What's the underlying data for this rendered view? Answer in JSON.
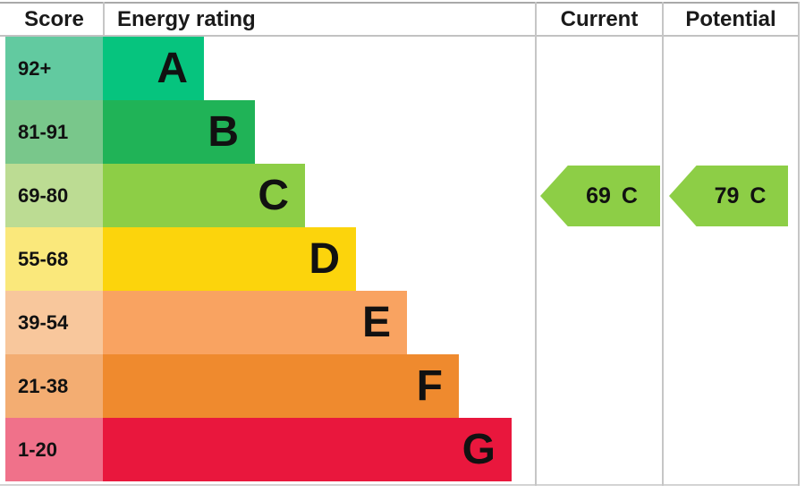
{
  "header": {
    "score": "Score",
    "energy_rating": "Energy rating",
    "current": "Current",
    "potential": "Potential"
  },
  "bands": [
    {
      "score_range": "92+",
      "letter": "A",
      "bar_color": "#06c47e",
      "score_color": "#62caa0"
    },
    {
      "score_range": "81-91",
      "letter": "B",
      "bar_color": "#20b357",
      "score_color": "#79c78b"
    },
    {
      "score_range": "69-80",
      "letter": "C",
      "bar_color": "#8dce46",
      "score_color": "#bcdc93"
    },
    {
      "score_range": "55-68",
      "letter": "D",
      "bar_color": "#fcd40c",
      "score_color": "#fae87b"
    },
    {
      "score_range": "39-54",
      "letter": "E",
      "bar_color": "#f9a361",
      "score_color": "#f8c79c"
    },
    {
      "score_range": "21-38",
      "letter": "F",
      "bar_color": "#ef8a2e",
      "score_color": "#f3ad72"
    },
    {
      "score_range": "1-20",
      "letter": "G",
      "bar_color": "#e9173d",
      "score_color": "#f0718a"
    }
  ],
  "current": {
    "value": "69",
    "band": "C",
    "arrow_color": "#8dce46"
  },
  "potential": {
    "value": "79",
    "band": "C",
    "arrow_color": "#8dce46"
  },
  "chart_data": {
    "type": "bar",
    "title": "Energy rating (EPC)",
    "categories": [
      "A",
      "B",
      "C",
      "D",
      "E",
      "F",
      "G"
    ],
    "score_ranges": [
      "92+",
      "81-91",
      "69-80",
      "55-68",
      "39-54",
      "21-38",
      "1-20"
    ],
    "bar_relative_lengths": [
      1,
      2,
      3,
      4,
      5,
      6,
      7
    ],
    "bar_colors": [
      "#06c47e",
      "#20b357",
      "#8dce46",
      "#fcd40c",
      "#f9a361",
      "#ef8a2e",
      "#e9173d"
    ],
    "columns": [
      "Score",
      "Energy rating",
      "Current",
      "Potential"
    ],
    "current": {
      "score": 69,
      "band": "C"
    },
    "potential": {
      "score": 79,
      "band": "C"
    },
    "legend_position": "none",
    "grid": false
  }
}
